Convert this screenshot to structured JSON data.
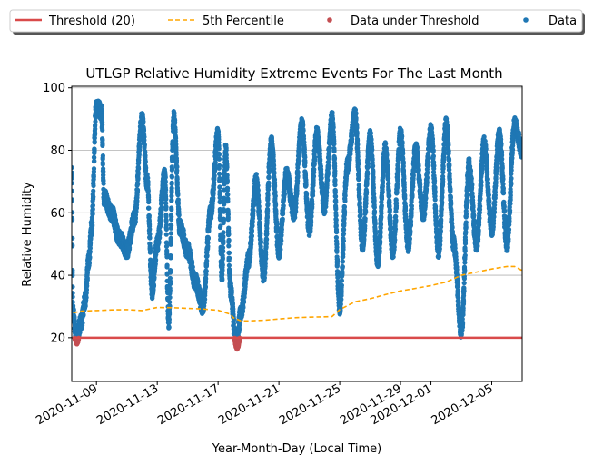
{
  "chart_data": {
    "type": "scatter",
    "title": "UTLGP Relative Humidity Extreme Events For The Last Month",
    "xlabel": "Year-Month-Day (Local Time)",
    "ylabel": "Relative Humidity",
    "x_range": [
      "2020-11-07T09:00",
      "2020-12-07T00:00"
    ],
    "ylim": [
      6,
      100.5
    ],
    "yticks": [
      20,
      40,
      60,
      80,
      100
    ],
    "xticks": [
      "2020-11-09",
      "2020-11-13",
      "2020-11-17",
      "2020-11-21",
      "2020-11-25",
      "2020-11-29",
      "2020-12-01",
      "2020-12-05"
    ],
    "grid": "horizontal",
    "legend_placement": "top, outside plot",
    "threshold": {
      "name": "Threshold (20)",
      "value": 20,
      "color": "#d94a4a"
    },
    "percentile": {
      "name": "5th Percentile",
      "color": "#ffa500",
      "points": [
        [
          "2020-11-07",
          27.5
        ],
        [
          "2020-11-08",
          28.5
        ],
        [
          "2020-11-09",
          28.7
        ],
        [
          "2020-11-10",
          28.9
        ],
        [
          "2020-11-11",
          29.0
        ],
        [
          "2020-11-12",
          28.7
        ],
        [
          "2020-11-13",
          29.7
        ],
        [
          "2020-11-14",
          29.6
        ],
        [
          "2020-11-15",
          29.4
        ],
        [
          "2020-11-16",
          29.2
        ],
        [
          "2020-11-17",
          28.8
        ],
        [
          "2020-11-17T20:00",
          27.5
        ],
        [
          "2020-11-18",
          26.4
        ],
        [
          "2020-11-18T12:00",
          25.4
        ],
        [
          "2020-11-19",
          25.4
        ],
        [
          "2020-11-20",
          25.6
        ],
        [
          "2020-11-21",
          26.0
        ],
        [
          "2020-11-22",
          26.4
        ],
        [
          "2020-11-23",
          26.6
        ],
        [
          "2020-11-24",
          26.7
        ],
        [
          "2020-11-24T12:00",
          26.8
        ],
        [
          "2020-11-25",
          29.0
        ],
        [
          "2020-11-26",
          31.5
        ],
        [
          "2020-11-27",
          32.5
        ],
        [
          "2020-11-28",
          33.8
        ],
        [
          "2020-11-29",
          35.0
        ],
        [
          "2020-11-30",
          35.8
        ],
        [
          "2020-12-01",
          36.7
        ],
        [
          "2020-12-02",
          37.8
        ],
        [
          "2020-12-03",
          40.0
        ],
        [
          "2020-12-04",
          41.0
        ],
        [
          "2020-12-05",
          42.0
        ],
        [
          "2020-12-06",
          42.8
        ],
        [
          "2020-12-06T12:00",
          42.8
        ],
        [
          "2020-12-07",
          41.5
        ]
      ]
    },
    "under_threshold": {
      "name": "Data under Threshold",
      "color": "#c44e52",
      "events": [
        {
          "start": "2020-11-07T14:00",
          "end": "2020-11-07T20:00",
          "min": 18.5
        },
        {
          "start": "2020-11-18T02:00",
          "end": "2020-11-18T10:00",
          "min": 16.9
        }
      ]
    },
    "data": {
      "name": "Data",
      "color": "#1f77b4",
      "profile": [
        [
          "2020-11-07T09:00",
          72
        ],
        [
          "2020-11-07T11:00",
          28
        ],
        [
          "2020-11-07T16:00",
          19
        ],
        [
          "2020-11-08T00:00",
          25
        ],
        [
          "2020-11-08T06:00",
          32
        ],
        [
          "2020-11-08T12:00",
          45
        ],
        [
          "2020-11-08T16:00",
          55
        ],
        [
          "2020-11-09T00:00",
          95
        ],
        [
          "2020-11-09T08:00",
          92
        ],
        [
          "2020-11-09T12:00",
          65
        ],
        [
          "2020-11-10T00:00",
          60
        ],
        [
          "2020-11-10T12:00",
          52
        ],
        [
          "2020-11-11T00:00",
          48
        ],
        [
          "2020-11-11T12:00",
          58
        ],
        [
          "2020-11-12T00:00",
          90
        ],
        [
          "2020-11-12T08:00",
          70
        ],
        [
          "2020-11-12T16:00",
          35
        ],
        [
          "2020-11-13T00:00",
          50
        ],
        [
          "2020-11-13T12:00",
          72
        ],
        [
          "2020-11-13T18:00",
          25
        ],
        [
          "2020-11-14T02:00",
          90
        ],
        [
          "2020-11-14T12:00",
          55
        ],
        [
          "2020-11-15T00:00",
          48
        ],
        [
          "2020-11-15T12:00",
          38
        ],
        [
          "2020-11-16T00:00",
          30
        ],
        [
          "2020-11-16T12:00",
          60
        ],
        [
          "2020-11-17T00:00",
          85
        ],
        [
          "2020-11-17T06:00",
          40
        ],
        [
          "2020-11-17T12:00",
          80
        ],
        [
          "2020-11-17T20:00",
          35
        ],
        [
          "2020-11-18T04:00",
          17
        ],
        [
          "2020-11-18T12:00",
          28
        ],
        [
          "2020-11-19T00:00",
          45
        ],
        [
          "2020-11-19T12:00",
          70
        ],
        [
          "2020-11-20T00:00",
          40
        ],
        [
          "2020-11-20T12:00",
          82
        ],
        [
          "2020-11-21T00:00",
          48
        ],
        [
          "2020-11-21T12:00",
          72
        ],
        [
          "2020-11-22T00:00",
          60
        ],
        [
          "2020-11-22T12:00",
          88
        ],
        [
          "2020-11-23T00:00",
          55
        ],
        [
          "2020-11-23T12:00",
          85
        ],
        [
          "2020-11-24T00:00",
          62
        ],
        [
          "2020-11-24T12:00",
          90
        ],
        [
          "2020-11-25T00:00",
          30
        ],
        [
          "2020-11-25T12:00",
          75
        ],
        [
          "2020-11-26T00:00",
          91
        ],
        [
          "2020-11-26T12:00",
          50
        ],
        [
          "2020-11-27T00:00",
          84
        ],
        [
          "2020-11-27T12:00",
          45
        ],
        [
          "2020-11-28T00:00",
          80
        ],
        [
          "2020-11-28T12:00",
          48
        ],
        [
          "2020-11-29T00:00",
          85
        ],
        [
          "2020-11-29T12:00",
          50
        ],
        [
          "2020-11-30T00:00",
          80
        ],
        [
          "2020-11-30T12:00",
          60
        ],
        [
          "2020-12-01T00:00",
          86
        ],
        [
          "2020-12-01T12:00",
          48
        ],
        [
          "2020-12-02T00:00",
          88
        ],
        [
          "2020-12-02T12:00",
          50
        ],
        [
          "2020-12-03T00:00",
          22
        ],
        [
          "2020-12-03T12:00",
          75
        ],
        [
          "2020-12-04T00:00",
          50
        ],
        [
          "2020-12-04T12:00",
          82
        ],
        [
          "2020-12-05T00:00",
          55
        ],
        [
          "2020-12-05T12:00",
          85
        ],
        [
          "2020-12-06T00:00",
          50
        ],
        [
          "2020-12-06T12:00",
          88
        ],
        [
          "2020-12-07T00:00",
          80
        ]
      ]
    },
    "legend": [
      "Threshold (20)",
      "5th Percentile",
      "Data under Threshold",
      "Data"
    ]
  }
}
